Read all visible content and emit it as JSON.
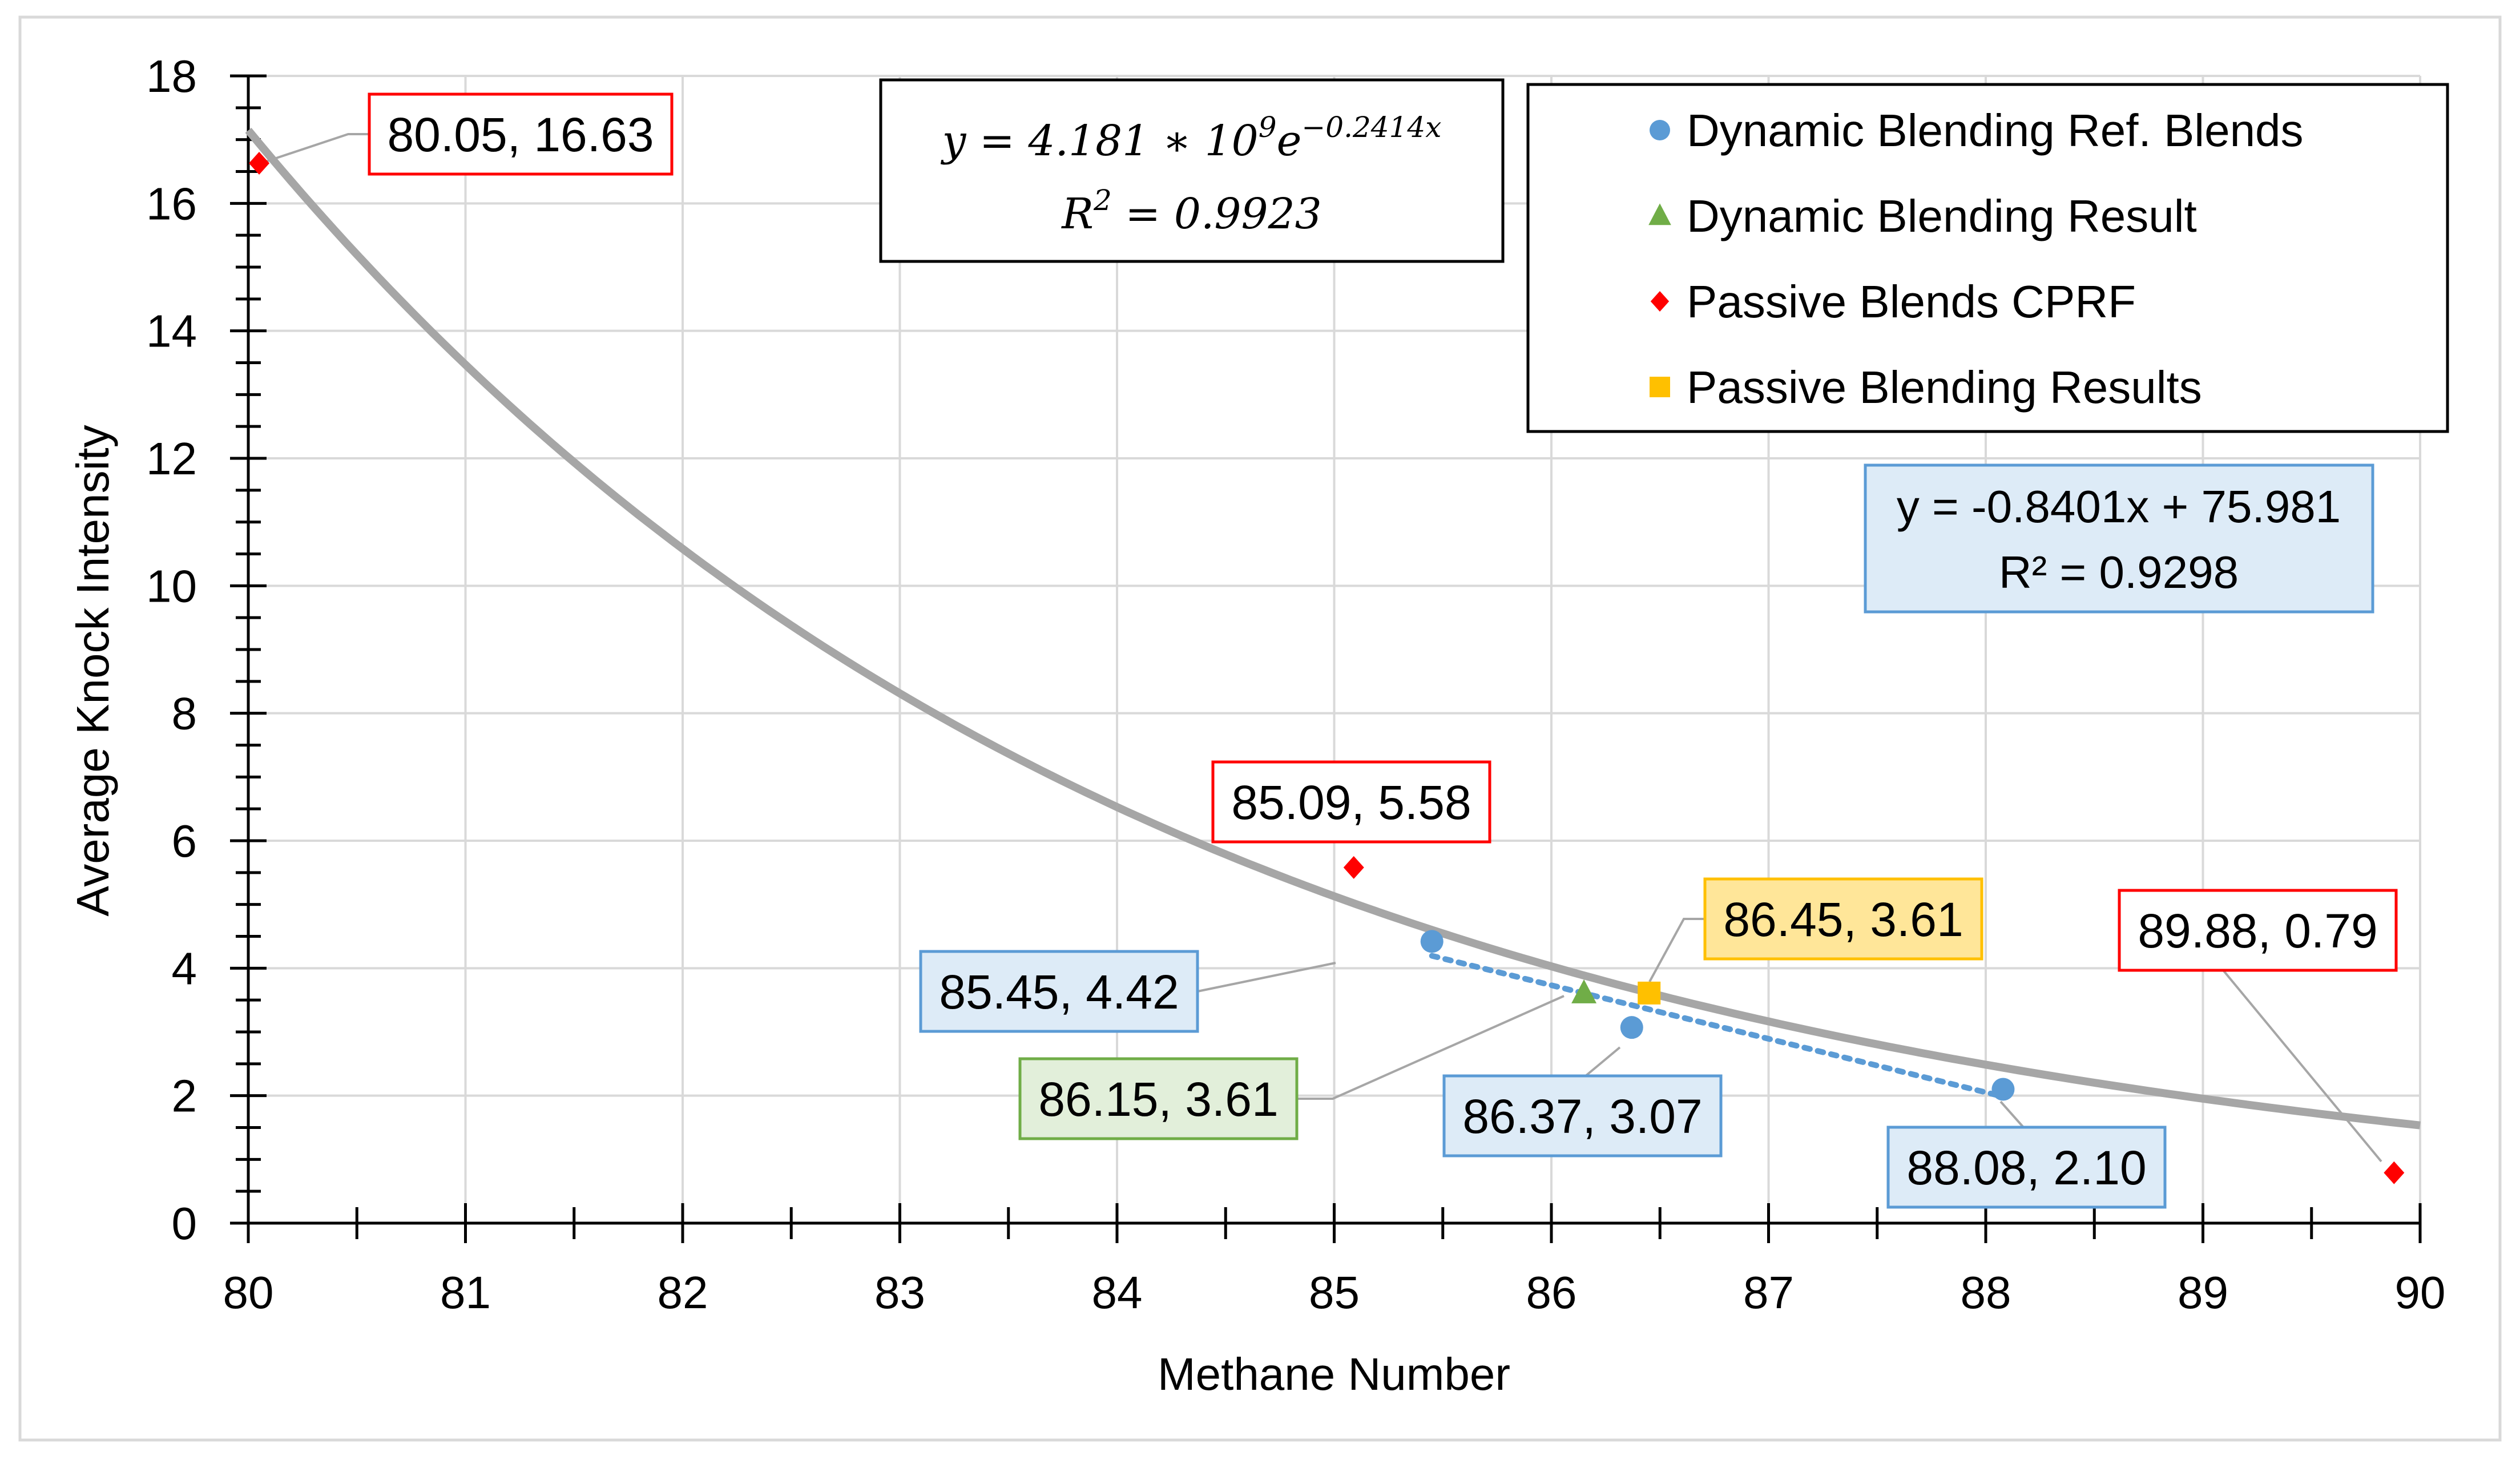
{
  "chart_data": {
    "type": "scatter",
    "title": "",
    "xlabel": "Methane Number",
    "ylabel": "Average Knock Intensity",
    "xlim": [
      80,
      90
    ],
    "ylim": [
      0,
      18
    ],
    "x_ticks": [
      "80",
      "81",
      "82",
      "83",
      "84",
      "85",
      "86",
      "87",
      "88",
      "89",
      "90"
    ],
    "y_ticks": [
      "0",
      "2",
      "4",
      "6",
      "8",
      "10",
      "12",
      "14",
      "16",
      "18"
    ],
    "grid": true,
    "legend_position": "top-right",
    "series": [
      {
        "name": "Dynamic Blending Ref. Blends",
        "marker": "circle",
        "color": "#5B9BD5",
        "points": [
          {
            "x": 85.45,
            "y": 4.42,
            "label": "85.45, 4.42"
          },
          {
            "x": 86.37,
            "y": 3.07,
            "label": "86.37, 3.07"
          },
          {
            "x": 88.08,
            "y": 2.1,
            "label": "88.08, 2.10"
          }
        ]
      },
      {
        "name": "Dynamic Blending Result",
        "marker": "triangle",
        "color": "#70AD47",
        "points": [
          {
            "x": 86.15,
            "y": 3.61,
            "label": "86.15, 3.61"
          }
        ]
      },
      {
        "name": "Passive Blends CPRF",
        "marker": "diamond",
        "color": "#FF0000",
        "points": [
          {
            "x": 80.05,
            "y": 16.63,
            "label": "80.05, 16.63"
          },
          {
            "x": 85.09,
            "y": 5.58,
            "label": "85.09, 5.58"
          },
          {
            "x": 89.88,
            "y": 0.79,
            "label": "89.88, 0.79"
          }
        ]
      },
      {
        "name": "Passive Blending Results",
        "marker": "square",
        "color": "#FFC000",
        "points": [
          {
            "x": 86.45,
            "y": 3.61,
            "label": "86.45, 3.61"
          }
        ]
      }
    ],
    "trendlines": [
      {
        "name": "exponential fit",
        "type": "exponential",
        "a": 4181000000,
        "b": -0.2414,
        "x_range": [
          80,
          90
        ],
        "color": "#A6A6A6",
        "equation_parts": [
          "y = 4.181 ∗ 10",
          "9",
          "e",
          "−0.2414x"
        ],
        "r2_parts": [
          "R",
          "2",
          " = 0.9923"
        ]
      },
      {
        "name": "linear fit",
        "type": "linear",
        "slope": -0.8401,
        "intercept": 75.981,
        "x_range": [
          85.45,
          88.08
        ],
        "color": "#5B9BD5",
        "equation": "y = -0.8401x + 75.981",
        "r2": "R² = 0.9298"
      }
    ]
  }
}
